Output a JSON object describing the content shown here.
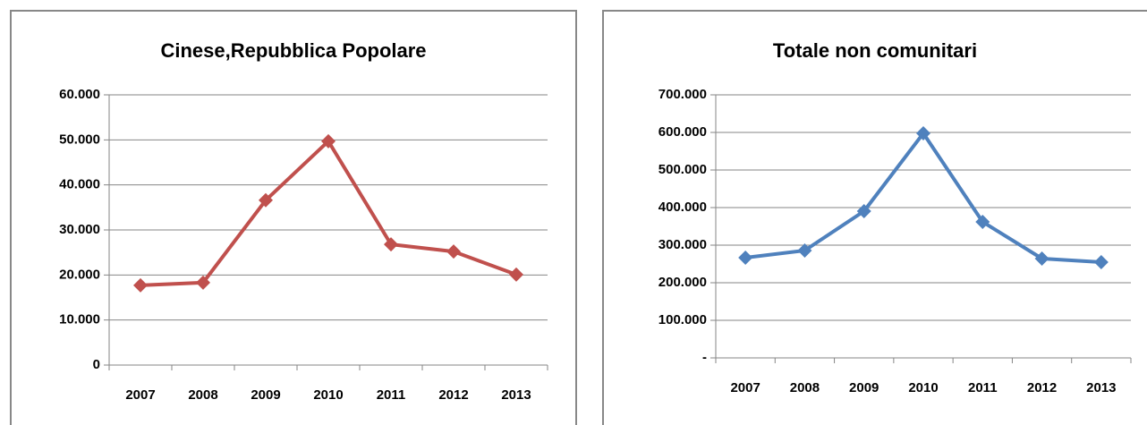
{
  "chart_data": [
    {
      "type": "line",
      "title": "Cinese,Repubblica Popolare",
      "categories": [
        "2007",
        "2008",
        "2009",
        "2010",
        "2011",
        "2012",
        "2013"
      ],
      "values": [
        17700,
        18300,
        36600,
        49700,
        26800,
        25200,
        20100
      ],
      "color": "#c0504d",
      "ylim": [
        0,
        60000
      ],
      "yticks": [
        0,
        {
          "value": 10000,
          "label": "10.000"
        },
        {
          "value": 20000,
          "label": "20.000"
        },
        {
          "value": 30000,
          "label": "30.000"
        },
        {
          "value": 40000,
          "label": "40.000"
        },
        {
          "value": 50000,
          "label": "50.000"
        },
        {
          "value": 60000,
          "label": "60.000"
        }
      ],
      "grid": true
    },
    {
      "type": "line",
      "title": "Totale non comunitari",
      "categories": [
        "2007",
        "2008",
        "2009",
        "2010",
        "2011",
        "2012",
        "2013"
      ],
      "values": [
        266700,
        285700,
        390500,
        597600,
        362000,
        264300,
        254800
      ],
      "color": "#4f81bd",
      "ylim": [
        0,
        700000
      ],
      "yticks": [
        {
          "value": 0,
          "label": "-"
        },
        {
          "value": 100000,
          "label": "100.000"
        },
        {
          "value": 200000,
          "label": "200.000"
        },
        {
          "value": 300000,
          "label": "300.000"
        },
        {
          "value": 400000,
          "label": "400.000"
        },
        {
          "value": 500000,
          "label": "500.000"
        },
        {
          "value": 600000,
          "label": "600.000"
        },
        {
          "value": 700000,
          "label": "700.000"
        }
      ],
      "grid": true
    }
  ]
}
